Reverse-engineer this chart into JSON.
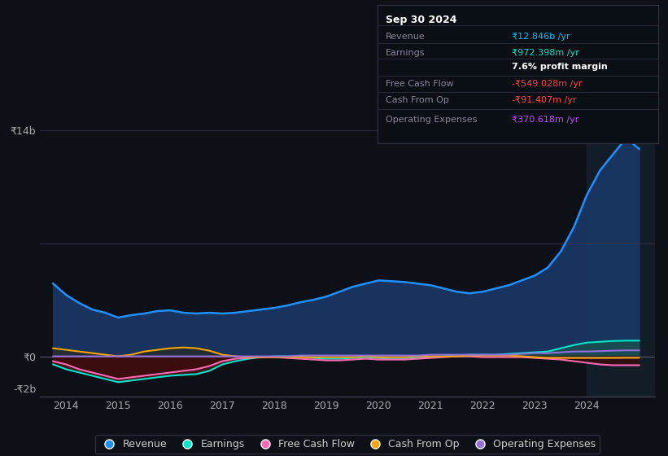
{
  "bg_color": "#0d1117",
  "plot_bg_color": "#0d1117",
  "grid_color": "#2a3a4a",
  "title": "Sep 30 2024",
  "info_box_rows": [
    {
      "label": "Revenue",
      "value": "₹12.846b /yr",
      "value_color": "#00bfff"
    },
    {
      "label": "Earnings",
      "value": "₹972.398m /yr",
      "value_color": "#00e5cc"
    },
    {
      "label": "",
      "value": "7.6% profit margin",
      "value_color": "#ffffff",
      "bold": true
    },
    {
      "label": "Free Cash Flow",
      "value": "-₹549.028m /yr",
      "value_color": "#ff4444"
    },
    {
      "label": "Cash From Op",
      "value": "-₹91.407m /yr",
      "value_color": "#ff4444"
    },
    {
      "label": "Operating Expenses",
      "value": "₹370.618m /yr",
      "value_color": "#cc44ff"
    }
  ],
  "ylim": [
    -2500000000,
    15000000000
  ],
  "yticks": [
    -2000000000,
    0,
    14000000000
  ],
  "ytick_labels": [
    "-₹2b",
    "₹0",
    "₹14b"
  ],
  "xlim": [
    2013.5,
    2025.3
  ],
  "xticks": [
    2014,
    2015,
    2016,
    2017,
    2018,
    2019,
    2020,
    2021,
    2022,
    2023,
    2024
  ],
  "revenue_color": "#1e90ff",
  "earnings_color": "#00e5cc",
  "fcf_color": "#ff69b4",
  "cashfromop_color": "#ffa500",
  "opex_color": "#9370db",
  "fill_revenue_color": "#1a3a6a",
  "fill_earnings_pos_color": "#1a5a4a",
  "fill_earnings_neg_color": "#5a1a1a",
  "fill_fcf_color": "#3a0a0a",
  "years": [
    2013.75,
    2014.0,
    2014.25,
    2014.5,
    2014.75,
    2015.0,
    2015.25,
    2015.5,
    2015.75,
    2016.0,
    2016.25,
    2016.5,
    2016.75,
    2017.0,
    2017.25,
    2017.5,
    2017.75,
    2018.0,
    2018.25,
    2018.5,
    2018.75,
    2019.0,
    2019.25,
    2019.5,
    2019.75,
    2020.0,
    2020.25,
    2020.5,
    2020.75,
    2021.0,
    2021.25,
    2021.5,
    2021.75,
    2022.0,
    2022.25,
    2022.5,
    2022.75,
    2023.0,
    2023.25,
    2023.5,
    2023.75,
    2024.0,
    2024.25,
    2024.5,
    2024.75,
    2025.0
  ],
  "revenue": [
    4500000000,
    3800000000,
    3300000000,
    2900000000,
    2700000000,
    2400000000,
    2550000000,
    2650000000,
    2800000000,
    2850000000,
    2700000000,
    2650000000,
    2700000000,
    2650000000,
    2700000000,
    2800000000,
    2900000000,
    3000000000,
    3150000000,
    3350000000,
    3500000000,
    3700000000,
    4000000000,
    4300000000,
    4500000000,
    4700000000,
    4650000000,
    4600000000,
    4500000000,
    4400000000,
    4200000000,
    4000000000,
    3900000000,
    4000000000,
    4200000000,
    4400000000,
    4700000000,
    5000000000,
    5500000000,
    6500000000,
    8000000000,
    10000000000,
    11500000000,
    12500000000,
    13500000000,
    12846000000
  ],
  "earnings": [
    -500000000,
    -800000000,
    -1000000000,
    -1200000000,
    -1400000000,
    -1600000000,
    -1500000000,
    -1400000000,
    -1300000000,
    -1200000000,
    -1150000000,
    -1100000000,
    -900000000,
    -500000000,
    -300000000,
    -150000000,
    -50000000,
    0,
    0,
    0,
    -100000000,
    -150000000,
    -150000000,
    -100000000,
    -50000000,
    -100000000,
    -150000000,
    -150000000,
    -100000000,
    -50000000,
    0,
    50000000,
    100000000,
    100000000,
    100000000,
    150000000,
    200000000,
    250000000,
    300000000,
    500000000,
    700000000,
    850000000,
    900000000,
    950000000,
    970000000,
    972000000
  ],
  "fcf": [
    -300000000,
    -500000000,
    -800000000,
    -1000000000,
    -1200000000,
    -1400000000,
    -1300000000,
    -1200000000,
    -1100000000,
    -1000000000,
    -900000000,
    -800000000,
    -600000000,
    -300000000,
    -150000000,
    -100000000,
    -50000000,
    -50000000,
    -100000000,
    -150000000,
    -200000000,
    -250000000,
    -250000000,
    -200000000,
    -150000000,
    -200000000,
    -200000000,
    -200000000,
    -150000000,
    -100000000,
    -50000000,
    0,
    0,
    -50000000,
    -50000000,
    -50000000,
    -50000000,
    -100000000,
    -150000000,
    -200000000,
    -300000000,
    -400000000,
    -500000000,
    -550000000,
    -549000000,
    -549000000
  ],
  "cashfromop": [
    500000000,
    400000000,
    300000000,
    200000000,
    100000000,
    0,
    100000000,
    300000000,
    400000000,
    500000000,
    550000000,
    500000000,
    350000000,
    100000000,
    0,
    -50000000,
    -50000000,
    -50000000,
    -50000000,
    -50000000,
    -50000000,
    -50000000,
    -50000000,
    -50000000,
    0,
    -50000000,
    -50000000,
    -50000000,
    0,
    0,
    0,
    0,
    50000000,
    50000000,
    50000000,
    50000000,
    0,
    -50000000,
    -100000000,
    -100000000,
    -100000000,
    -100000000,
    -100000000,
    -100000000,
    -91000000,
    -91000000
  ],
  "opex": [
    0,
    0,
    0,
    0,
    0,
    0,
    0,
    0,
    0,
    0,
    0,
    0,
    0,
    0,
    0,
    0,
    0,
    0,
    0,
    50000000,
    50000000,
    50000000,
    50000000,
    50000000,
    50000000,
    50000000,
    50000000,
    50000000,
    50000000,
    100000000,
    100000000,
    100000000,
    100000000,
    100000000,
    100000000,
    100000000,
    150000000,
    200000000,
    200000000,
    250000000,
    300000000,
    300000000,
    320000000,
    350000000,
    370000000,
    370000000
  ],
  "legend": [
    {
      "label": "Revenue",
      "color": "#1e90ff"
    },
    {
      "label": "Earnings",
      "color": "#00e5cc"
    },
    {
      "label": "Free Cash Flow",
      "color": "#ff69b4"
    },
    {
      "label": "Cash From Op",
      "color": "#ffa500"
    },
    {
      "label": "Operating Expenses",
      "color": "#9370db"
    }
  ],
  "shaded_region_start": 2024.0,
  "shaded_region_color": "#1a2a3a"
}
